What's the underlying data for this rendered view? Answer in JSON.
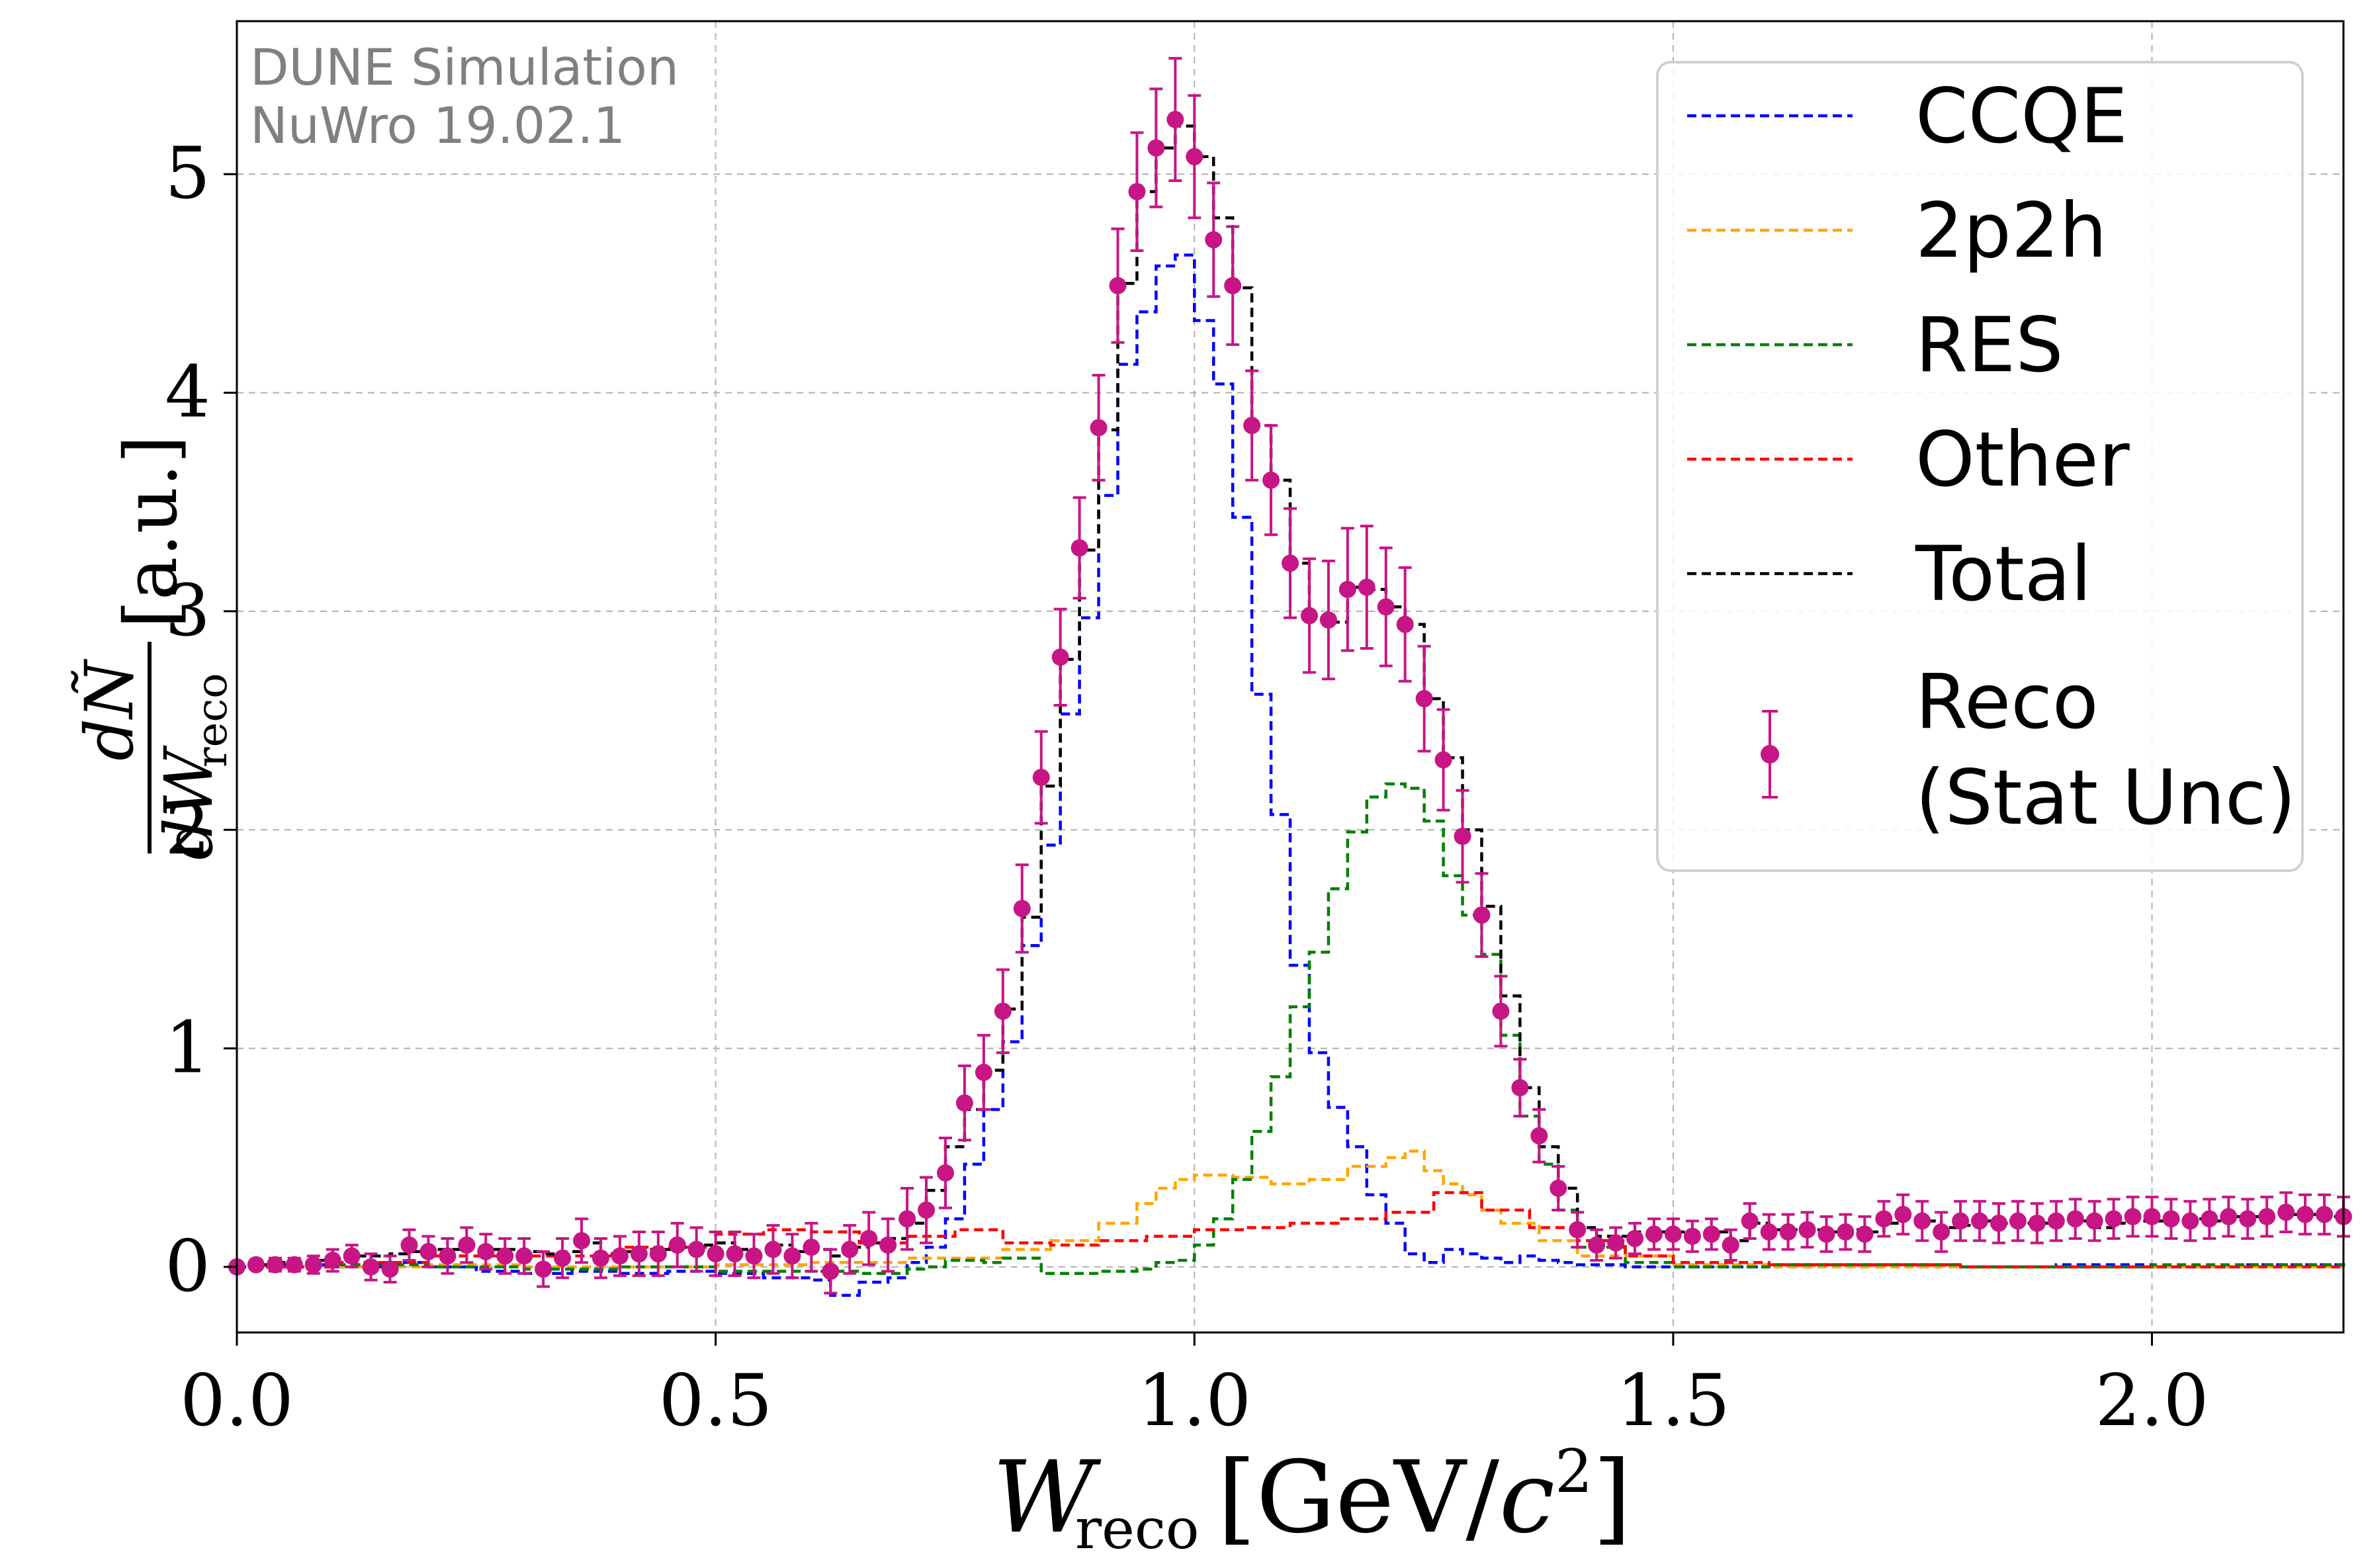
{
  "chart_data": {
    "type": "line",
    "title": "",
    "watermark": [
      "DUNE Simulation",
      "NuWro 19.02.1"
    ],
    "xlabel": "W_reco [GeV/c²]",
    "ylabel": "dÑ/dW_reco [a.u.]",
    "xlim": [
      0.0,
      2.2
    ],
    "ylim": [
      -0.3,
      5.7
    ],
    "xticks": [
      0.0,
      0.5,
      1.0,
      1.5,
      2.0
    ],
    "xtick_labels": [
      "0.0",
      "0.5",
      "1.0",
      "1.5",
      "2.0"
    ],
    "yticks": [
      0,
      1,
      2,
      3,
      4,
      5
    ],
    "ytick_labels": [
      "0",
      "1",
      "2",
      "3",
      "4",
      "5"
    ],
    "grid": true,
    "legend_position": "top-right",
    "series": [
      {
        "name": "CCQE",
        "color": "#0000ff",
        "style": "dashed-step",
        "x": [
          0.0,
          0.05,
          0.1,
          0.15,
          0.2,
          0.25,
          0.3,
          0.35,
          0.4,
          0.45,
          0.5,
          0.55,
          0.6,
          0.62,
          0.65,
          0.68,
          0.7,
          0.72,
          0.74,
          0.76,
          0.78,
          0.8,
          0.82,
          0.84,
          0.86,
          0.88,
          0.9,
          0.92,
          0.94,
          0.96,
          0.98,
          1.0,
          1.02,
          1.04,
          1.06,
          1.08,
          1.1,
          1.12,
          1.14,
          1.16,
          1.18,
          1.2,
          1.22,
          1.24,
          1.26,
          1.28,
          1.3,
          1.32,
          1.34,
          1.36,
          1.38,
          1.4,
          1.45,
          1.5,
          1.6,
          1.7,
          1.8,
          1.9,
          2.0,
          2.1,
          2.2
        ],
        "y": [
          0.0,
          0.01,
          0.0,
          0.02,
          0.0,
          -0.02,
          -0.03,
          -0.02,
          -0.03,
          -0.02,
          -0.03,
          -0.05,
          -0.06,
          -0.13,
          -0.07,
          -0.05,
          0.02,
          0.09,
          0.22,
          0.47,
          0.72,
          1.03,
          1.47,
          1.93,
          2.53,
          2.97,
          3.53,
          4.13,
          4.37,
          4.58,
          4.63,
          4.33,
          4.04,
          3.43,
          2.62,
          2.07,
          1.38,
          0.98,
          0.73,
          0.55,
          0.33,
          0.2,
          0.06,
          0.02,
          0.08,
          0.06,
          0.04,
          0.02,
          0.05,
          0.03,
          0.02,
          0.01,
          0.0,
          0.0,
          0.01,
          0.01,
          0.0,
          0.01,
          0.0,
          0.01,
          0.0
        ]
      },
      {
        "name": "2p2h",
        "color": "#ffa500",
        "style": "dashed-step",
        "x": [
          0.0,
          0.1,
          0.2,
          0.3,
          0.4,
          0.5,
          0.6,
          0.7,
          0.8,
          0.85,
          0.9,
          0.94,
          0.96,
          0.98,
          1.0,
          1.04,
          1.08,
          1.12,
          1.16,
          1.2,
          1.22,
          1.24,
          1.26,
          1.28,
          1.3,
          1.32,
          1.36,
          1.4,
          1.5,
          1.6,
          1.8,
          2.0,
          2.2
        ],
        "y": [
          0.0,
          0.0,
          0.01,
          0.0,
          0.0,
          0.01,
          0.02,
          0.04,
          0.08,
          0.12,
          0.2,
          0.29,
          0.36,
          0.4,
          0.42,
          0.41,
          0.38,
          0.4,
          0.46,
          0.5,
          0.53,
          0.44,
          0.38,
          0.33,
          0.26,
          0.2,
          0.12,
          0.05,
          0.01,
          0.0,
          0.0,
          0.0,
          0.0
        ]
      },
      {
        "name": "RES",
        "color": "#008000",
        "style": "dashed-step",
        "x": [
          0.0,
          0.1,
          0.2,
          0.3,
          0.4,
          0.5,
          0.6,
          0.65,
          0.7,
          0.72,
          0.74,
          0.78,
          0.8,
          0.84,
          0.88,
          0.9,
          0.92,
          0.94,
          0.96,
          0.98,
          1.0,
          1.02,
          1.04,
          1.06,
          1.08,
          1.1,
          1.12,
          1.14,
          1.16,
          1.18,
          1.2,
          1.22,
          1.24,
          1.26,
          1.28,
          1.3,
          1.32,
          1.34,
          1.36,
          1.38,
          1.4,
          1.45,
          1.5,
          1.6,
          1.8,
          2.0,
          2.2
        ],
        "y": [
          0.0,
          0.01,
          0.0,
          -0.01,
          0.0,
          -0.02,
          -0.02,
          -0.03,
          -0.01,
          0.0,
          0.03,
          0.02,
          0.04,
          -0.03,
          -0.03,
          -0.02,
          -0.02,
          -0.01,
          0.02,
          0.03,
          0.1,
          0.22,
          0.4,
          0.62,
          0.87,
          1.19,
          1.44,
          1.73,
          1.99,
          2.15,
          2.21,
          2.19,
          2.04,
          1.79,
          1.61,
          1.43,
          1.06,
          0.69,
          0.47,
          0.26,
          0.09,
          0.02,
          0.0,
          0.01,
          0.0,
          0.01,
          0.0
        ]
      },
      {
        "name": "Other",
        "color": "#ff0000",
        "style": "dashed-step",
        "x": [
          0.0,
          0.1,
          0.2,
          0.3,
          0.4,
          0.5,
          0.55,
          0.6,
          0.65,
          0.7,
          0.75,
          0.8,
          0.85,
          0.9,
          0.95,
          1.0,
          1.05,
          1.1,
          1.15,
          1.2,
          1.25,
          1.3,
          1.35,
          1.4,
          1.45,
          1.5,
          1.6,
          1.8,
          2.0,
          2.2
        ],
        "y": [
          0.0,
          0.02,
          0.05,
          0.05,
          0.09,
          0.15,
          0.17,
          0.16,
          0.11,
          0.14,
          0.17,
          0.11,
          0.1,
          0.12,
          0.14,
          0.17,
          0.18,
          0.2,
          0.22,
          0.25,
          0.34,
          0.26,
          0.18,
          0.12,
          0.05,
          0.02,
          0.01,
          0.0,
          0.0,
          0.0
        ]
      },
      {
        "name": "Total",
        "color": "#000000",
        "style": "dashed-step",
        "x": [
          0.0,
          0.02,
          0.04,
          0.06,
          0.08,
          0.1,
          0.12,
          0.14,
          0.16,
          0.18,
          0.2,
          0.22,
          0.24,
          0.26,
          0.28,
          0.3,
          0.32,
          0.34,
          0.36,
          0.38,
          0.4,
          0.42,
          0.44,
          0.46,
          0.48,
          0.5,
          0.52,
          0.54,
          0.56,
          0.58,
          0.6,
          0.62,
          0.64,
          0.66,
          0.68,
          0.7,
          0.72,
          0.74,
          0.76,
          0.78,
          0.8,
          0.82,
          0.84,
          0.86,
          0.88,
          0.9,
          0.92,
          0.94,
          0.96,
          0.98,
          1.0,
          1.02,
          1.04,
          1.06,
          1.08,
          1.1,
          1.12,
          1.14,
          1.16,
          1.18,
          1.2,
          1.22,
          1.24,
          1.26,
          1.28,
          1.3,
          1.32,
          1.34,
          1.36,
          1.38,
          1.4,
          1.42,
          1.44,
          1.46,
          1.48,
          1.5,
          1.52,
          1.54,
          1.56,
          1.58,
          1.6,
          1.62,
          1.64,
          1.66,
          1.68,
          1.7,
          1.72,
          1.74,
          1.76,
          1.78,
          1.8,
          1.82,
          1.84,
          1.86,
          1.88,
          1.9,
          1.92,
          1.94,
          1.96,
          1.98,
          2.0,
          2.02,
          2.04,
          2.06,
          2.08,
          2.1,
          2.12,
          2.14,
          2.16,
          2.18
        ],
        "y": [
          0.0,
          0.01,
          0.02,
          0.02,
          0.03,
          0.04,
          0.05,
          0.05,
          0.06,
          0.07,
          0.08,
          0.08,
          0.09,
          0.08,
          0.08,
          0.07,
          0.06,
          0.07,
          0.11,
          0.06,
          0.07,
          0.08,
          0.08,
          0.09,
          0.1,
          0.11,
          0.08,
          0.07,
          0.1,
          0.07,
          0.08,
          0.05,
          0.09,
          0.11,
          0.13,
          0.2,
          0.35,
          0.55,
          0.72,
          0.9,
          1.18,
          1.6,
          2.2,
          2.78,
          3.28,
          3.83,
          4.5,
          4.92,
          5.12,
          5.22,
          5.08,
          4.8,
          4.48,
          3.85,
          3.6,
          3.22,
          2.97,
          2.95,
          3.11,
          3.1,
          3.02,
          2.94,
          2.6,
          2.33,
          2.0,
          1.65,
          1.24,
          0.82,
          0.55,
          0.36,
          0.18,
          0.14,
          0.14,
          0.16,
          0.16,
          0.16,
          0.16,
          0.16,
          0.12,
          0.2,
          0.17,
          0.17,
          0.17,
          0.16,
          0.17,
          0.16,
          0.2,
          0.22,
          0.21,
          0.18,
          0.19,
          0.21,
          0.2,
          0.2,
          0.2,
          0.21,
          0.21,
          0.18,
          0.2,
          0.21,
          0.21,
          0.22,
          0.22,
          0.21,
          0.23,
          0.23,
          0.23,
          0.24,
          0.24,
          0.23
        ]
      },
      {
        "name": "Reco\n(Stat Unc)",
        "color": "#c71585",
        "style": "errorbar",
        "x": [
          0.0,
          0.02,
          0.04,
          0.06,
          0.08,
          0.1,
          0.12,
          0.14,
          0.16,
          0.18,
          0.2,
          0.22,
          0.24,
          0.26,
          0.28,
          0.3,
          0.32,
          0.34,
          0.36,
          0.38,
          0.4,
          0.42,
          0.44,
          0.46,
          0.48,
          0.5,
          0.52,
          0.54,
          0.56,
          0.58,
          0.6,
          0.62,
          0.64,
          0.66,
          0.68,
          0.7,
          0.72,
          0.74,
          0.76,
          0.78,
          0.8,
          0.82,
          0.84,
          0.86,
          0.88,
          0.9,
          0.92,
          0.94,
          0.96,
          0.98,
          1.0,
          1.02,
          1.04,
          1.06,
          1.08,
          1.1,
          1.12,
          1.14,
          1.16,
          1.18,
          1.2,
          1.22,
          1.24,
          1.26,
          1.28,
          1.3,
          1.32,
          1.34,
          1.36,
          1.38,
          1.4,
          1.42,
          1.44,
          1.46,
          1.48,
          1.5,
          1.52,
          1.54,
          1.56,
          1.58,
          1.6,
          1.62,
          1.64,
          1.66,
          1.68,
          1.7,
          1.72,
          1.74,
          1.76,
          1.78,
          1.8,
          1.82,
          1.84,
          1.86,
          1.88,
          1.9,
          1.92,
          1.94,
          1.96,
          1.98,
          2.0,
          2.02,
          2.04,
          2.06,
          2.08,
          2.1,
          2.12,
          2.14,
          2.16,
          2.18,
          2.2
        ],
        "y": [
          0.0,
          0.01,
          0.01,
          0.01,
          0.01,
          0.03,
          0.05,
          0.0,
          -0.01,
          0.1,
          0.07,
          0.05,
          0.1,
          0.07,
          0.05,
          0.05,
          -0.01,
          0.04,
          0.12,
          0.04,
          0.05,
          0.06,
          0.06,
          0.1,
          0.08,
          0.06,
          0.06,
          0.05,
          0.08,
          0.05,
          0.09,
          -0.02,
          0.08,
          0.13,
          0.1,
          0.22,
          0.26,
          0.43,
          0.75,
          0.89,
          1.17,
          1.64,
          2.24,
          2.79,
          3.29,
          3.84,
          4.49,
          4.92,
          5.12,
          5.25,
          5.08,
          4.7,
          4.49,
          3.85,
          3.6,
          3.22,
          2.98,
          2.96,
          3.1,
          3.11,
          3.02,
          2.94,
          2.6,
          2.32,
          1.97,
          1.61,
          1.17,
          0.82,
          0.6,
          0.36,
          0.17,
          0.1,
          0.11,
          0.13,
          0.15,
          0.15,
          0.14,
          0.15,
          0.1,
          0.21,
          0.16,
          0.16,
          0.17,
          0.15,
          0.16,
          0.15,
          0.22,
          0.24,
          0.21,
          0.16,
          0.21,
          0.21,
          0.2,
          0.21,
          0.2,
          0.21,
          0.22,
          0.21,
          0.22,
          0.23,
          0.23,
          0.22,
          0.21,
          0.22,
          0.23,
          0.22,
          0.23,
          0.25,
          0.24,
          0.24,
          0.23
        ],
        "yerr": [
          0.02,
          0.02,
          0.03,
          0.03,
          0.04,
          0.05,
          0.05,
          0.06,
          0.06,
          0.07,
          0.07,
          0.08,
          0.08,
          0.08,
          0.08,
          0.08,
          0.08,
          0.09,
          0.1,
          0.09,
          0.09,
          0.1,
          0.1,
          0.1,
          0.1,
          0.1,
          0.1,
          0.1,
          0.11,
          0.1,
          0.11,
          0.1,
          0.11,
          0.12,
          0.12,
          0.14,
          0.15,
          0.16,
          0.17,
          0.17,
          0.19,
          0.2,
          0.21,
          0.22,
          0.23,
          0.24,
          0.26,
          0.27,
          0.27,
          0.28,
          0.28,
          0.26,
          0.27,
          0.25,
          0.25,
          0.25,
          0.26,
          0.27,
          0.28,
          0.28,
          0.27,
          0.26,
          0.24,
          0.23,
          0.21,
          0.19,
          0.16,
          0.13,
          0.12,
          0.1,
          0.08,
          0.07,
          0.07,
          0.07,
          0.07,
          0.07,
          0.07,
          0.07,
          0.07,
          0.08,
          0.08,
          0.08,
          0.08,
          0.08,
          0.08,
          0.08,
          0.08,
          0.09,
          0.09,
          0.09,
          0.09,
          0.09,
          0.09,
          0.09,
          0.09,
          0.09,
          0.09,
          0.09,
          0.09,
          0.09,
          0.09,
          0.09,
          0.09,
          0.09,
          0.09,
          0.09,
          0.09,
          0.09,
          0.09,
          0.09,
          0.09
        ]
      }
    ]
  }
}
